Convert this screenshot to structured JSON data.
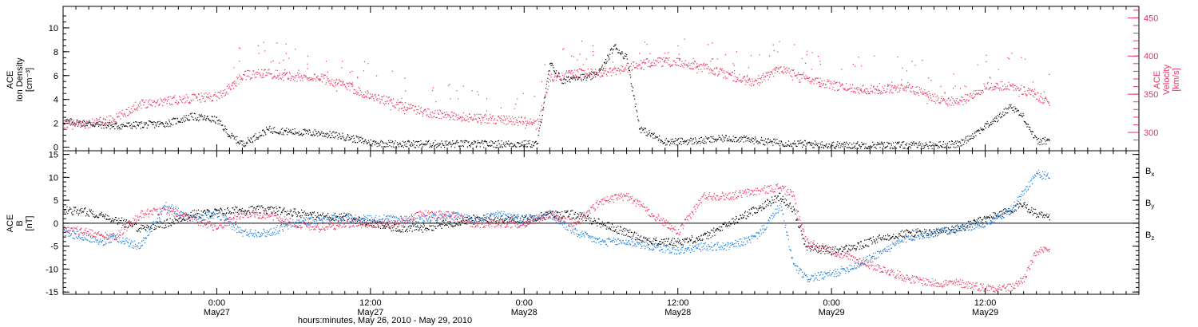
{
  "colors": {
    "black": "#000000",
    "red": "#e8335f",
    "blue": "#1a7fe0",
    "axis": "#000000"
  },
  "chart_data": [
    {
      "type": "scatter",
      "panel": "top",
      "xlabel": "hours:minutes, May 26, 2010 - May 29, 2010",
      "x_ticks": [
        {
          "h": 24,
          "time": "0:00",
          "date": "May27"
        },
        {
          "h": 36,
          "time": "12:00",
          "date": "May27"
        },
        {
          "h": 48,
          "time": "0:00",
          "date": "May28"
        },
        {
          "h": 60,
          "time": "12:00",
          "date": "May28"
        },
        {
          "h": 72,
          "time": "0:00",
          "date": "May29"
        },
        {
          "h": 84,
          "time": "12:00",
          "date": "May29"
        }
      ],
      "xlim": [
        12,
        96
      ],
      "left_axis": {
        "label_lines": [
          "ACE",
          "Ion Density",
          "[cm⁻³]"
        ],
        "ylim": [
          -0.3,
          11.8
        ],
        "ticks": [
          "0",
          "2",
          "4",
          "6",
          "8",
          "10"
        ],
        "tick_values": [
          0,
          2,
          4,
          6,
          8,
          10
        ]
      },
      "right_axis": {
        "label_lines": [
          "ACE",
          "Velocity",
          "[km/s]"
        ],
        "ylim": [
          276,
          465
        ],
        "ticks": [
          "300",
          "350",
          "400",
          "450"
        ],
        "tick_values": [
          300,
          350,
          400,
          450
        ]
      },
      "series": [
        {
          "color": "#000000",
          "axis": "left",
          "x": [
            12,
            14,
            16,
            18,
            20,
            22,
            24,
            25,
            26,
            28,
            30,
            32,
            34,
            36,
            38,
            40,
            42,
            44,
            46,
            48,
            49,
            50,
            51,
            52,
            53,
            54,
            55,
            56,
            57,
            58,
            59,
            60,
            62,
            64,
            66,
            68,
            70,
            72,
            74,
            76,
            78,
            80,
            82,
            84,
            85,
            86,
            87,
            88,
            89
          ],
          "y": [
            2.2,
            2.0,
            1.8,
            1.9,
            2.0,
            2.6,
            2.3,
            1.0,
            0.3,
            1.5,
            1.3,
            1.2,
            0.9,
            0.4,
            0.3,
            0.3,
            0.3,
            0.3,
            0.3,
            0.3,
            0.3,
            7.0,
            5.5,
            6.0,
            5.8,
            6.5,
            8.5,
            7.5,
            1.6,
            1.0,
            0.5,
            0.5,
            0.6,
            0.8,
            0.6,
            0.4,
            0.3,
            0.2,
            0.2,
            0.2,
            0.2,
            0.2,
            0.3,
            1.8,
            2.5,
            3.5,
            2.5,
            0.5,
            0.6
          ]
        },
        {
          "color": "#e8335f",
          "axis": "right",
          "x": [
            12,
            14,
            16,
            18,
            20,
            22,
            24,
            25,
            26,
            28,
            30,
            32,
            34,
            36,
            38,
            40,
            42,
            44,
            46,
            48,
            49,
            50,
            52,
            54,
            56,
            58,
            60,
            62,
            64,
            66,
            68,
            70,
            72,
            74,
            76,
            78,
            80,
            82,
            84,
            86,
            88,
            89
          ],
          "y": [
            310,
            312,
            318,
            338,
            342,
            345,
            348,
            358,
            375,
            378,
            373,
            372,
            362,
            348,
            338,
            328,
            322,
            320,
            317,
            315,
            310,
            372,
            378,
            378,
            385,
            393,
            392,
            386,
            375,
            365,
            385,
            372,
            362,
            357,
            357,
            360,
            345,
            340,
            360,
            362,
            348,
            340
          ]
        }
      ]
    },
    {
      "type": "line",
      "panel": "bottom",
      "left_axis": {
        "label_lines": [
          "ACE",
          "B",
          "[nT]"
        ],
        "ylim": [
          -15.5,
          15.8
        ],
        "ticks": [
          "-15",
          "-10",
          "-5",
          "0",
          "5",
          "10",
          "15"
        ],
        "tick_values": [
          -15,
          -10,
          -5,
          0,
          5,
          10,
          15
        ]
      },
      "xlim": [
        12,
        96
      ],
      "legend": [
        "Bx",
        "By",
        "Bz"
      ],
      "legend_placement": "right",
      "series": [
        {
          "name": "Bx",
          "color": "#000000",
          "x": [
            12,
            14,
            16,
            18,
            20,
            22,
            24,
            26,
            28,
            30,
            32,
            34,
            36,
            38,
            40,
            42,
            44,
            46,
            48,
            50,
            52,
            54,
            56,
            58,
            60,
            62,
            64,
            66,
            68,
            69,
            70,
            72,
            74,
            76,
            78,
            80,
            82,
            84,
            86,
            87,
            88,
            89
          ],
          "y": [
            3,
            2.5,
            1,
            -1,
            0,
            2,
            2.5,
            3,
            3,
            2.5,
            1.5,
            1.5,
            0,
            -1,
            -1,
            0,
            1,
            1,
            1,
            2,
            2,
            0,
            -2,
            -4,
            -4,
            -3,
            0,
            3,
            6,
            3,
            -5,
            -6,
            -5,
            -3,
            -2,
            -2,
            -1,
            1,
            3,
            4,
            2,
            1
          ]
        },
        {
          "name": "By",
          "color": "#1a7fe0",
          "x": [
            12,
            14,
            15,
            16,
            18,
            20,
            22,
            24,
            26,
            28,
            30,
            32,
            34,
            36,
            38,
            40,
            42,
            44,
            46,
            48,
            50,
            52,
            54,
            56,
            58,
            60,
            62,
            64,
            66,
            67,
            68,
            69,
            70,
            72,
            74,
            76,
            78,
            80,
            82,
            84,
            86,
            88,
            89
          ],
          "y": [
            -2,
            -3,
            -4,
            -3,
            -5,
            4,
            1,
            2,
            -2,
            -2,
            0,
            1,
            1,
            1,
            1,
            1,
            2,
            1,
            2,
            1,
            2,
            -2,
            -4,
            -4,
            -5,
            -6,
            -5,
            -5,
            -3,
            0,
            4,
            -9,
            -12,
            -11,
            -9,
            -6,
            -3,
            -2,
            -1,
            0,
            3,
            11,
            10
          ]
        },
        {
          "name": "Bz",
          "color": "#e8335f",
          "x": [
            12,
            14,
            16,
            18,
            20,
            22,
            24,
            26,
            28,
            30,
            32,
            34,
            36,
            38,
            40,
            42,
            44,
            46,
            48,
            50,
            52,
            54,
            56,
            58,
            60,
            62,
            64,
            66,
            68,
            69,
            70,
            72,
            74,
            76,
            78,
            80,
            82,
            84,
            86,
            87,
            88,
            89
          ],
          "y": [
            -1,
            -2,
            -3,
            2,
            3,
            1,
            -1,
            2,
            2,
            0,
            -1,
            0,
            0,
            0,
            2,
            2,
            0,
            0,
            0,
            2,
            0,
            5,
            6,
            2,
            -2,
            6,
            6,
            7,
            8,
            6,
            -4,
            -6,
            -8,
            -10,
            -12,
            -13,
            -13,
            -14,
            -14,
            -12,
            -6,
            -6
          ]
        }
      ]
    }
  ],
  "legend_labels": [
    {
      "base": "B",
      "sub": "x",
      "color": "#000000"
    },
    {
      "base": "B",
      "sub": "y",
      "color": "#1a7fe0"
    },
    {
      "base": "B",
      "sub": "z",
      "color": "#e8335f"
    }
  ]
}
